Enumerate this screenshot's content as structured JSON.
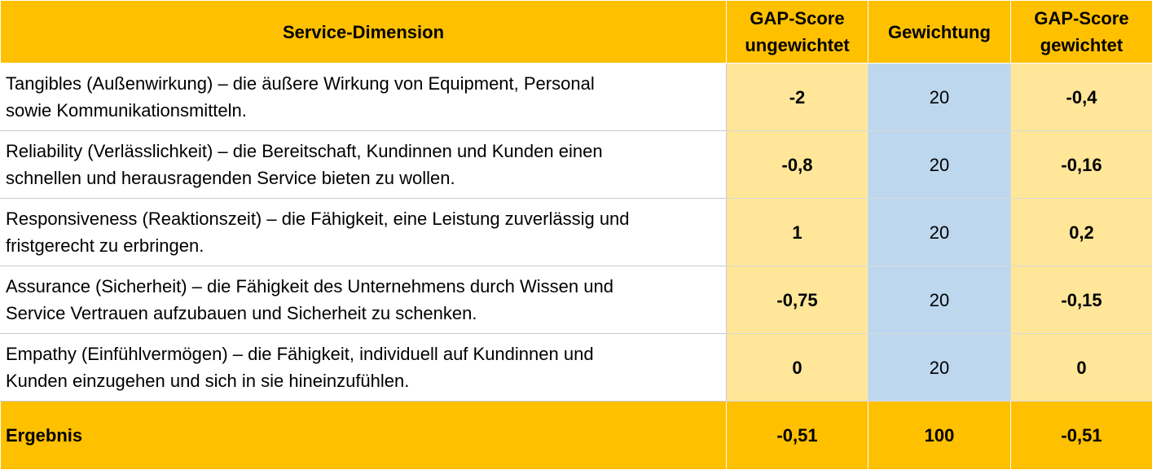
{
  "header": {
    "dimension": "Service-Dimension",
    "gap_unweighted_line1": "GAP-Score",
    "gap_unweighted_line2": "ungewichtet",
    "weighting": "Gewichtung",
    "gap_weighted_line1": "GAP-Score",
    "gap_weighted_line2": "gewichtet"
  },
  "rows": [
    {
      "dimension_line1": "Tangibles (Außenwirkung) – die äußere Wirkung von Equipment, Personal",
      "dimension_line2": "sowie Kommunikationsmitteln.",
      "gap_unweighted": "-2",
      "weighting": "20",
      "gap_weighted": "-0,4"
    },
    {
      "dimension_line1": "Reliability (Verlässlichkeit) – die Bereitschaft, Kundinnen und Kunden einen",
      "dimension_line2": "schnellen und herausragenden Service bieten zu wollen.",
      "gap_unweighted": "-0,8",
      "weighting": "20",
      "gap_weighted": "-0,16"
    },
    {
      "dimension_line1": "Responsiveness (Reaktionszeit) – die Fähigkeit, eine Leistung zuverlässig und",
      "dimension_line2": "fristgerecht zu erbringen.",
      "gap_unweighted": "1",
      "weighting": "20",
      "gap_weighted": "0,2"
    },
    {
      "dimension_line1": "Assurance (Sicherheit) – die Fähigkeit des Unternehmens durch Wissen und",
      "dimension_line2": "Service Vertrauen aufzubauen und Sicherheit zu schenken.",
      "gap_unweighted": "-0,75",
      "weighting": "20",
      "gap_weighted": "-0,15"
    },
    {
      "dimension_line1": "Empathy (Einfühlvermögen) – die Fähigkeit, individuell auf Kundinnen und",
      "dimension_line2": "Kunden einzugehen und sich in sie hineinzufühlen.",
      "gap_unweighted": "0",
      "weighting": "20",
      "gap_weighted": "0"
    }
  ],
  "total": {
    "label": "Ergebnis",
    "gap_unweighted": "-0,51",
    "weighting": "100",
    "gap_weighted": "-0,51"
  },
  "colors": {
    "header_fill": "#ffc000",
    "value_fill": "#ffe699",
    "weighting_fill": "#bdd7ee"
  }
}
